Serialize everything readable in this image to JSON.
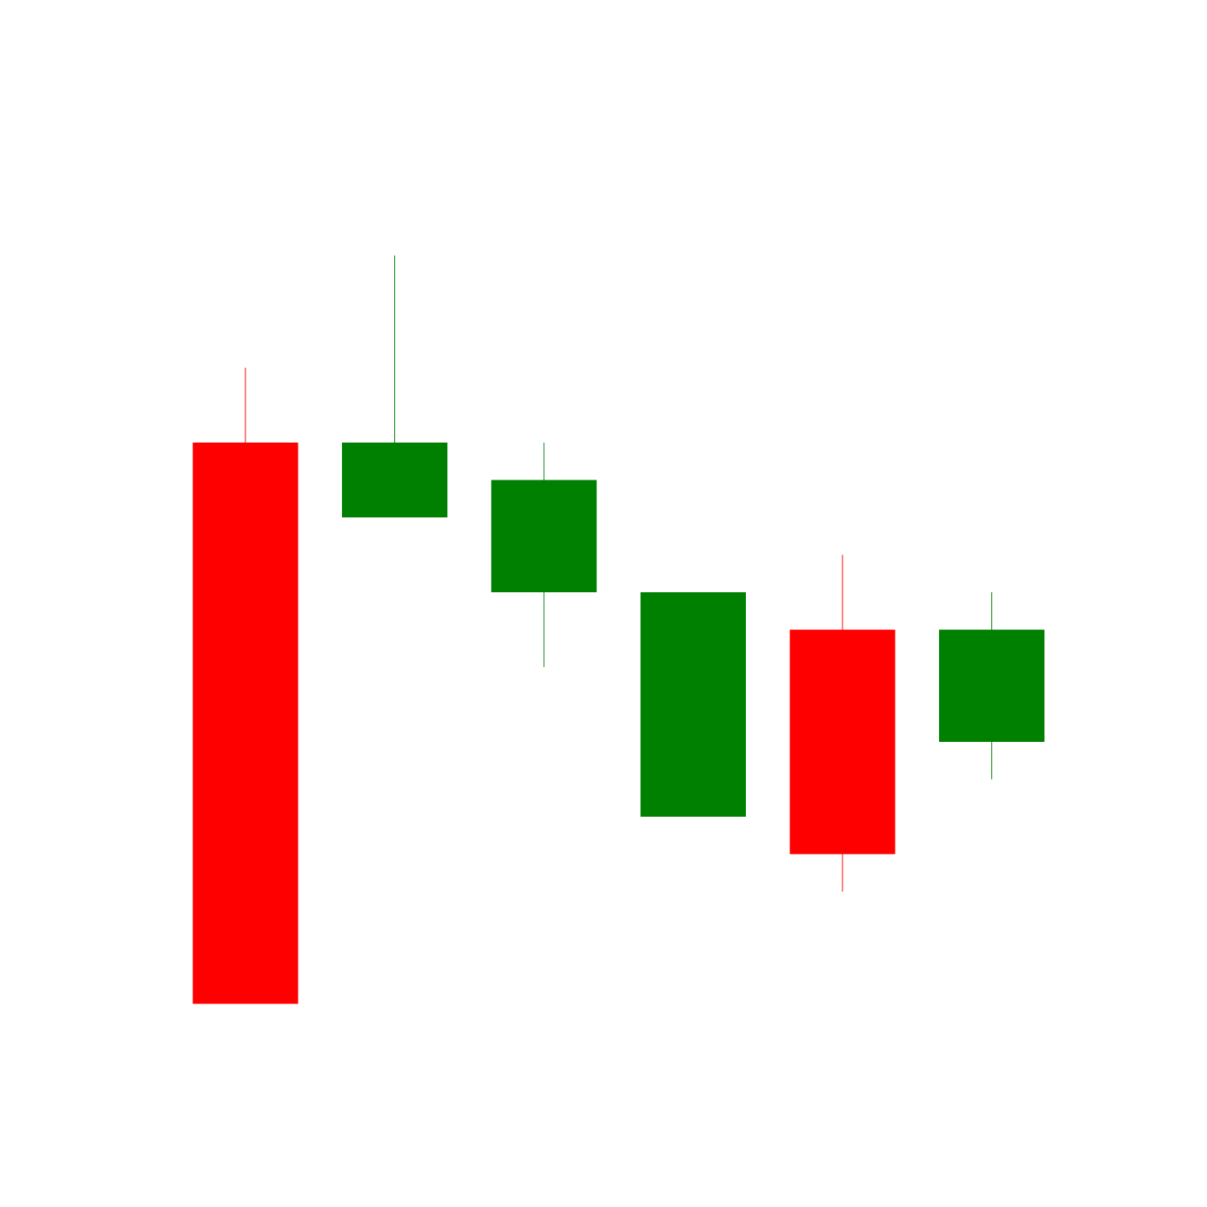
{
  "chart_data": {
    "type": "candlestick",
    "axes_visible": false,
    "grid": false,
    "legend": "none",
    "colors": {
      "up": "#008000",
      "down": "#ff0000",
      "background": "#ffffff"
    },
    "ylim": [
      0,
      15
    ],
    "candles": [
      {
        "open": 10,
        "close": 2.5,
        "high": 11,
        "low": 2.5
      },
      {
        "open": 9,
        "close": 10,
        "high": 12.5,
        "low": 9
      },
      {
        "open": 8,
        "close": 9.5,
        "high": 10,
        "low": 7
      },
      {
        "open": 5,
        "close": 8,
        "high": 8,
        "low": 5
      },
      {
        "open": 7.5,
        "close": 4.5,
        "high": 8.5,
        "low": 4
      },
      {
        "open": 6,
        "close": 7.5,
        "high": 8,
        "low": 5.5
      }
    ]
  }
}
